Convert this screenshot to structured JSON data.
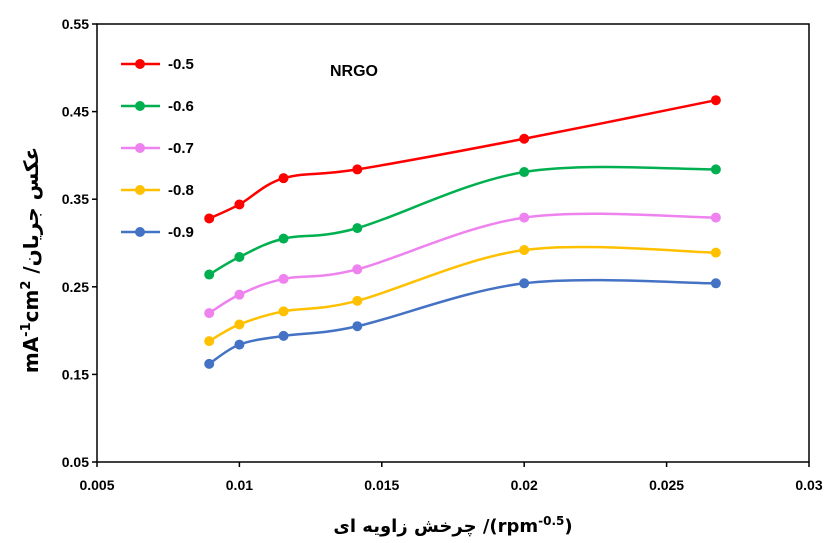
{
  "chart_data": {
    "type": "line",
    "smooth": true,
    "annotation": "NRGO",
    "xlabel_parts": {
      "main": "چرخش زاویه ای /(rpm",
      "sup": "-0.5",
      "close": ")"
    },
    "ylabel_parts": {
      "unit": "mA",
      "sup1": "-1",
      "unit2": "cm",
      "sup2": "2",
      "sep": "  /",
      "text": "عکس جریان"
    },
    "xlim": [
      0.005,
      0.03
    ],
    "ylim": [
      0.05,
      0.55
    ],
    "x_ticks": [
      "0.005",
      "0.01",
      "0.015",
      "0.02",
      "0.025",
      "0.03"
    ],
    "y_ticks": [
      "0.05",
      "0.15",
      "0.25",
      "0.35",
      "0.45",
      "0.55"
    ],
    "x": [
      0.00894,
      0.01,
      0.01155,
      0.01414,
      0.02,
      0.02673
    ],
    "legend_position": "top-left",
    "grid": false,
    "series": [
      {
        "name": "-0.5",
        "color": "#ff0000",
        "values": [
          0.328,
          0.344,
          0.374,
          0.384,
          0.419,
          0.463
        ]
      },
      {
        "name": "-0.6",
        "color": "#00b050",
        "values": [
          0.264,
          0.284,
          0.305,
          0.317,
          0.381,
          0.384
        ]
      },
      {
        "name": "-0.7",
        "color": "#ee82ee",
        "values": [
          0.22,
          0.241,
          0.259,
          0.27,
          0.329,
          0.329
        ]
      },
      {
        "name": "-0.8",
        "color": "#ffc000",
        "values": [
          0.188,
          0.207,
          0.222,
          0.234,
          0.292,
          0.289
        ]
      },
      {
        "name": "-0.9",
        "color": "#4472c4",
        "values": [
          0.162,
          0.184,
          0.194,
          0.205,
          0.254,
          0.254
        ]
      }
    ]
  }
}
